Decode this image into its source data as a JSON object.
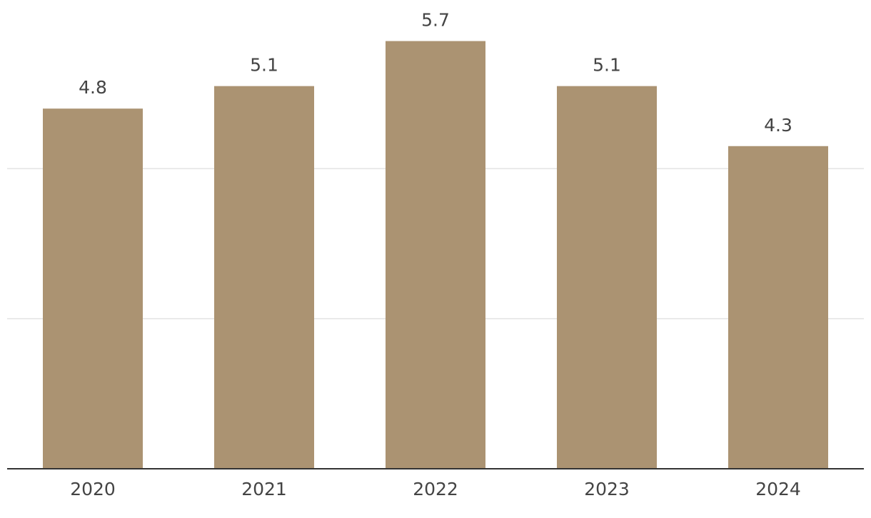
{
  "chart_data": {
    "type": "bar",
    "categories": [
      "2020",
      "2021",
      "2022",
      "2023",
      "2024"
    ],
    "values": [
      4.8,
      5.1,
      5.7,
      5.1,
      4.3
    ],
    "color": "#ab9372",
    "ylim": [
      0,
      6
    ],
    "yticks": [
      0,
      2,
      4
    ],
    "grid": true
  }
}
